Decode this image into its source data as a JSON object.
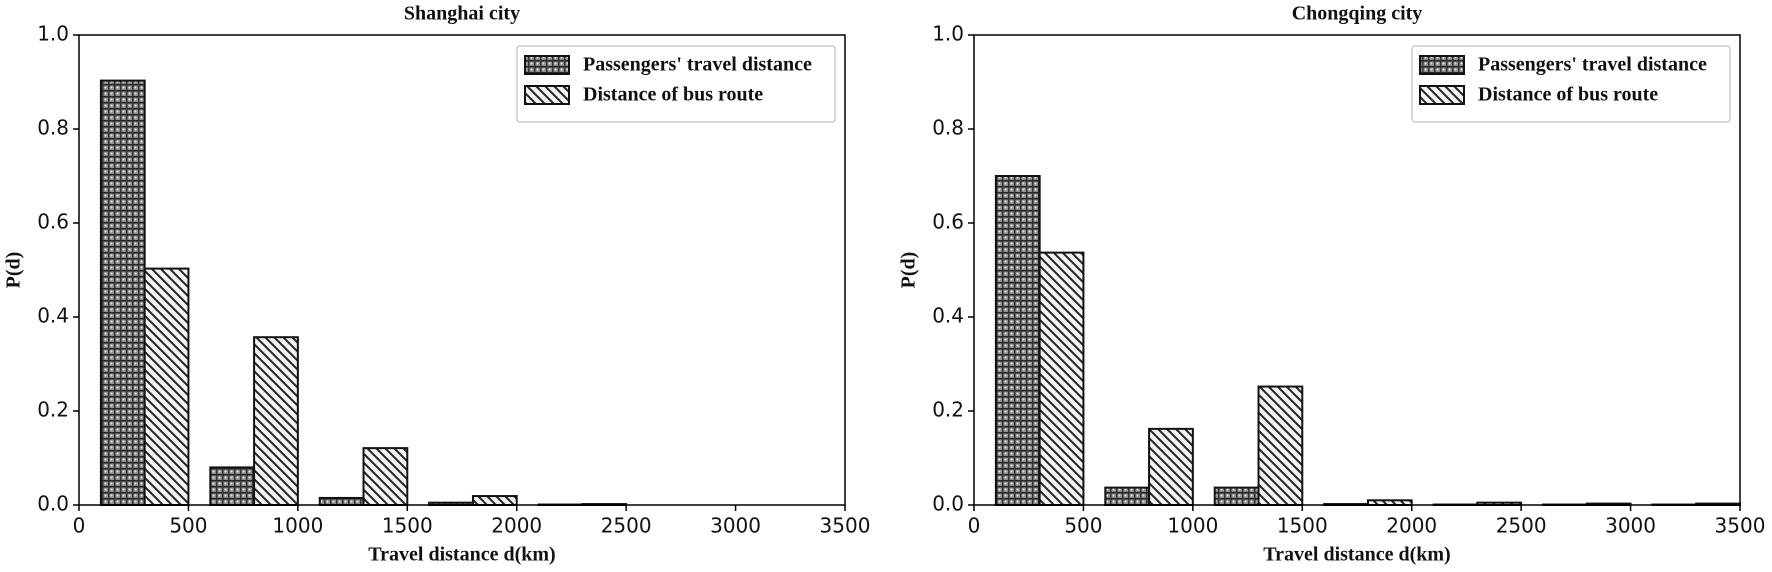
{
  "chart_data": [
    {
      "type": "bar",
      "title": "Shanghai city",
      "x_label": "Travel distance d(km)",
      "y_label": "P(d)",
      "x": [
        300,
        800,
        1300,
        1800,
        2300,
        2800,
        3300
      ],
      "series": [
        {
          "name": "Passengers' travel distance",
          "color": "#8c8c8c",
          "hatch": "dots",
          "values": [
            0.903,
            0.08,
            0.015,
            0.005,
            0.001,
            0,
            0
          ]
        },
        {
          "name": "Distance of bus route",
          "color": "#f2f2f2",
          "hatch": "diagonal",
          "values": [
            0.503,
            0.357,
            0.121,
            0.019,
            0.002,
            0,
            0
          ]
        }
      ],
      "xlim": [
        0,
        3500
      ],
      "xticks": [
        0,
        500,
        1000,
        1500,
        2000,
        2500,
        3000,
        3500
      ],
      "ylim": [
        0,
        1
      ],
      "yticks": [
        {
          "value": 0,
          "label": "0.0"
        },
        {
          "value": 0.2,
          "label": "0.2"
        },
        {
          "value": 0.4,
          "label": "0.4"
        },
        {
          "value": 0.6,
          "label": "0.6"
        },
        {
          "value": 0.8,
          "label": "0.8"
        },
        {
          "value": 1,
          "label": "1.0"
        }
      ],
      "legend": "upper right",
      "grid": false
    },
    {
      "type": "bar",
      "title": "Chongqing city",
      "x_label": "Travel distance d(km)",
      "y_label": "P(d)",
      "x": [
        300,
        800,
        1300,
        1800,
        2300,
        2800,
        3300
      ],
      "series": [
        {
          "name": "Passengers' travel distance",
          "color": "#8c8c8c",
          "hatch": "dots",
          "values": [
            0.7,
            0.037,
            0.037,
            0.002,
            0.001,
            0.001,
            0.001
          ]
        },
        {
          "name": "Distance of bus route",
          "color": "#f2f2f2",
          "hatch": "diagonal",
          "values": [
            0.537,
            0.162,
            0.252,
            0.01,
            0.005,
            0.003,
            0.003
          ]
        }
      ],
      "xlim": [
        0,
        3500
      ],
      "xticks": [
        0,
        500,
        1000,
        1500,
        2000,
        2500,
        3000,
        3500
      ],
      "ylim": [
        0,
        1
      ],
      "yticks": [
        {
          "value": 0,
          "label": "0.0"
        },
        {
          "value": 0.2,
          "label": "0.2"
        },
        {
          "value": 0.4,
          "label": "0.4"
        },
        {
          "value": 0.6,
          "label": "0.6"
        },
        {
          "value": 0.8,
          "label": "0.8"
        },
        {
          "value": 1,
          "label": "1.0"
        }
      ],
      "legend": "upper right",
      "grid": false
    }
  ]
}
